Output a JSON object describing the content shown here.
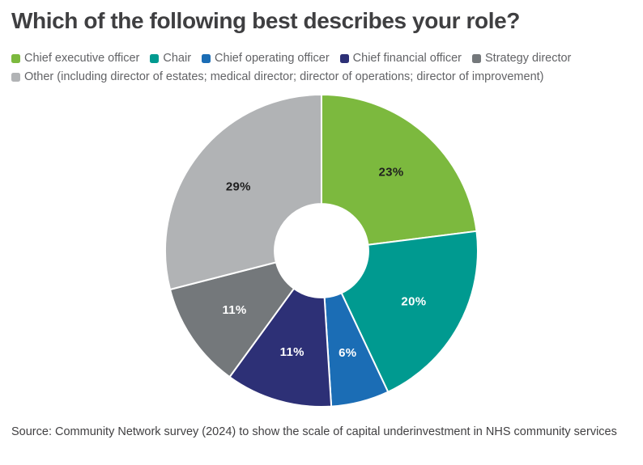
{
  "chart_data": {
    "type": "pie",
    "subtype": "donut",
    "title": "Which of the following best describes your role?",
    "labels": [
      "Chief executive officer",
      "Chair",
      "Chief operating officer",
      "Chief financial officer",
      "Strategy director",
      "Other (including director of estates; medical director; director of operations; director of improvement)"
    ],
    "values": [
      23,
      20,
      6,
      11,
      11,
      29
    ],
    "unit": "%",
    "colors": [
      "#7cb93e",
      "#009a90",
      "#1b6db5",
      "#2d3076",
      "#74787b",
      "#b1b3b5"
    ],
    "value_label_colors": [
      "#1f1f1f",
      "#ffffff",
      "#ffffff",
      "#ffffff",
      "#ffffff",
      "#1f1f1f"
    ],
    "start_angle_deg": 0,
    "direction": "clockwise",
    "donut_hole_ratio": 0.3,
    "legend_position": "top",
    "grid": false
  },
  "source": "Source: Community Network survey (2024) to show the scale of capital underinvestment in NHS community services"
}
